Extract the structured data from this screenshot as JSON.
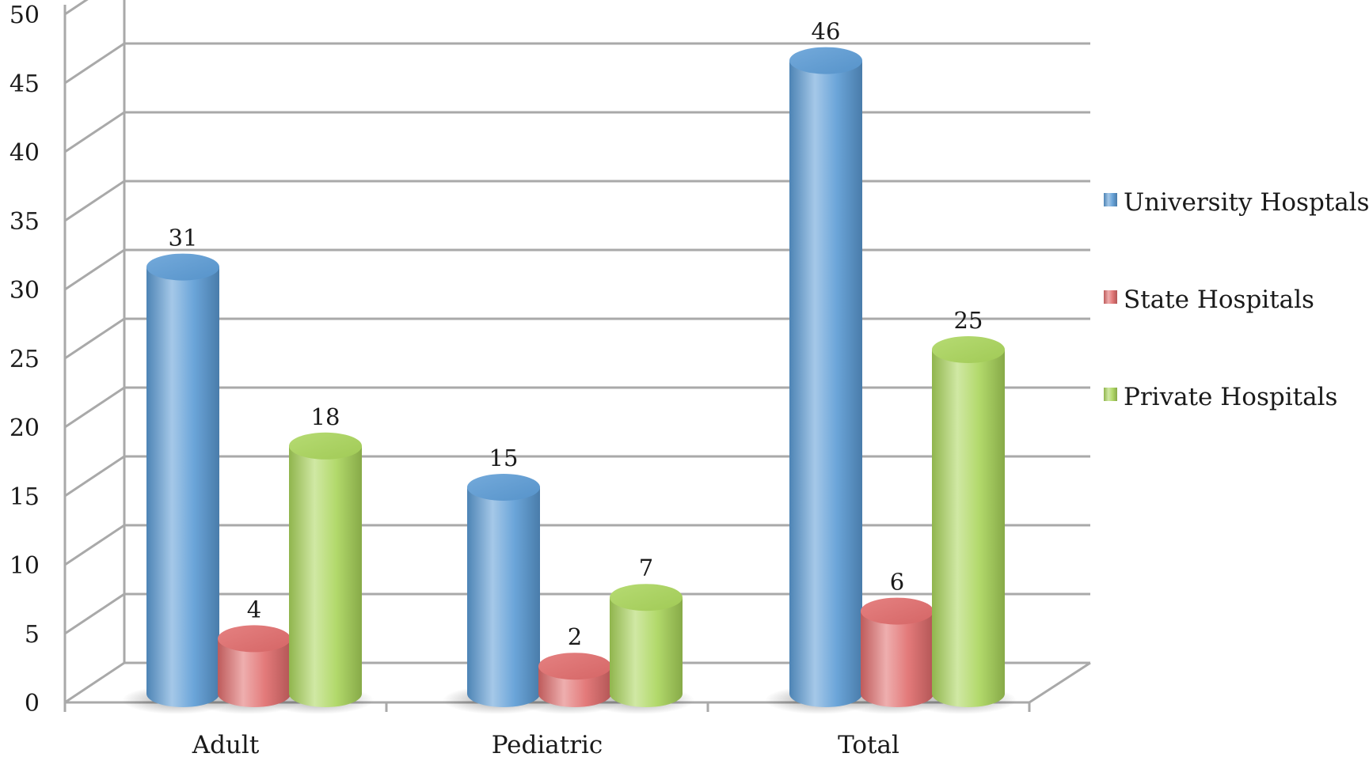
{
  "chart_data": {
    "type": "bar",
    "categories": [
      "Adult",
      "Pediatric",
      "Total"
    ],
    "series": [
      {
        "name": "University Hosptals",
        "values": [
          31,
          15,
          46
        ],
        "color": "#5b9bd5"
      },
      {
        "name": "State Hospitals",
        "values": [
          4,
          2,
          6
        ],
        "color": "#e06b6b"
      },
      {
        "name": "Private Hospitals",
        "values": [
          18,
          7,
          25
        ],
        "color": "#a9d55a"
      }
    ],
    "ylim": [
      0,
      50
    ],
    "yticks": [
      "0",
      "5",
      "10",
      "15",
      "20",
      "25",
      "30",
      "35",
      "40",
      "45",
      "50"
    ],
    "grid": true,
    "legend_position": "right",
    "style": "3d-cylinder",
    "xlabel": "",
    "ylabel": ""
  }
}
